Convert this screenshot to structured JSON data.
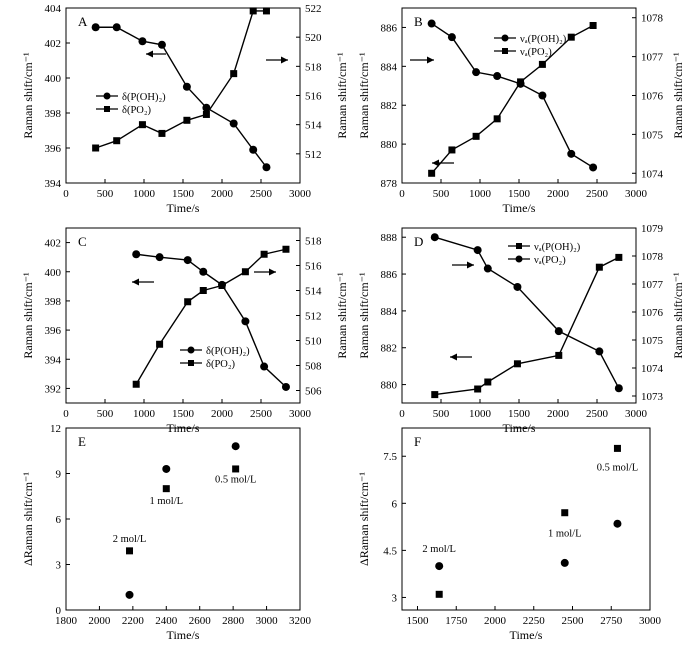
{
  "chart_data": [
    {
      "panel": "A",
      "type": "line",
      "xlabel": "Time/s",
      "ylabel": "Raman shift/cm⁻¹",
      "y2label": "Raman shift/cm⁻¹",
      "xlim": [
        0,
        3000
      ],
      "ylim": [
        394,
        404
      ],
      "y2lim": [
        510,
        522
      ],
      "xticks": [
        0,
        500,
        1000,
        1500,
        2000,
        2500,
        3000
      ],
      "yticks": [
        394,
        396,
        398,
        400,
        402,
        404
      ],
      "y2ticks": [
        512,
        514,
        516,
        518,
        520,
        522
      ],
      "series": [
        {
          "name": "δ(P(OH)₂)",
          "axis": "left",
          "marker": "circle",
          "x": [
            380,
            650,
            980,
            1230,
            1550,
            1800,
            2150,
            2400,
            2570
          ],
          "y": [
            402.9,
            402.9,
            402.1,
            401.9,
            399.5,
            398.3,
            397.4,
            395.9,
            394.9
          ]
        },
        {
          "name": "δ(PO₂)",
          "axis": "right",
          "marker": "square",
          "x": [
            380,
            650,
            980,
            1230,
            1550,
            1800,
            2150,
            2400,
            2570
          ],
          "y": [
            512.4,
            512.9,
            514.0,
            513.4,
            514.3,
            514.7,
            517.5,
            521.8,
            521.8
          ]
        }
      ],
      "legend": "left"
    },
    {
      "panel": "B",
      "type": "line",
      "xlabel": "Time/s",
      "ylabel": "Raman shift/cm⁻¹",
      "y2label": "Raman shift/cm⁻¹",
      "xlim": [
        0,
        3000
      ],
      "ylim": [
        878,
        887
      ],
      "y2lim": [
        1073.75,
        1078.25
      ],
      "xticks": [
        0,
        500,
        1000,
        1500,
        2000,
        2500,
        3000
      ],
      "yticks": [
        878,
        880,
        882,
        884,
        886
      ],
      "y2ticks": [
        1074,
        1075,
        1076,
        1077,
        1078
      ],
      "series": [
        {
          "name": "νₐ(P(OH)₂)",
          "axis": "left",
          "marker": "circle",
          "x": [
            380,
            640,
            950,
            1220,
            1520,
            1800,
            2170,
            2450
          ],
          "y": [
            886.2,
            885.5,
            883.7,
            883.5,
            883.1,
            882.5,
            879.5,
            878.8
          ]
        },
        {
          "name": "νₐ(PO₂)",
          "axis": "right",
          "marker": "square",
          "x": [
            380,
            640,
            950,
            1220,
            1520,
            1800,
            2170,
            2450
          ],
          "y": [
            1074.0,
            1074.6,
            1074.95,
            1075.4,
            1076.35,
            1076.8,
            1077.5,
            1077.8
          ]
        }
      ],
      "legend": "top-right"
    },
    {
      "panel": "C",
      "type": "line",
      "xlabel": "Time/s",
      "ylabel": "Raman shift/cm⁻¹",
      "y2label": "Raman shift/cm⁻¹",
      "xlim": [
        0,
        3000
      ],
      "ylim": [
        391,
        403
      ],
      "y2lim": [
        505,
        519
      ],
      "xticks": [
        0,
        500,
        1000,
        1500,
        2000,
        2500,
        3000
      ],
      "yticks": [
        392,
        394,
        396,
        398,
        400,
        402
      ],
      "y2ticks": [
        506,
        508,
        510,
        512,
        514,
        516,
        518
      ],
      "series": [
        {
          "name": "δ(P(OH)₂)",
          "axis": "left",
          "marker": "circle",
          "x": [
            900,
            1200,
            1560,
            1760,
            2000,
            2300,
            2540,
            2820
          ],
          "y": [
            401.2,
            401.0,
            400.8,
            400.0,
            399.1,
            396.6,
            393.5,
            392.1
          ]
        },
        {
          "name": "δ(PO₂)",
          "axis": "right",
          "marker": "square",
          "x": [
            900,
            1200,
            1560,
            1760,
            2000,
            2300,
            2540,
            2820
          ],
          "y": [
            506.5,
            509.7,
            513.1,
            514.0,
            514.4,
            515.5,
            516.9,
            517.3
          ]
        }
      ],
      "legend": "bottom-right"
    },
    {
      "panel": "D",
      "type": "line",
      "xlabel": "Time/s",
      "ylabel": "Raman shift/cm⁻¹",
      "y2label": "Raman shift/cm⁻¹",
      "xlim": [
        0,
        3000
      ],
      "ylim": [
        879,
        888.5
      ],
      "y2lim": [
        1072.75,
        1079
      ],
      "xticks": [
        0,
        500,
        1000,
        1500,
        2000,
        2500,
        3000
      ],
      "yticks": [
        880,
        882,
        884,
        886,
        888
      ],
      "y2ticks": [
        1073,
        1074,
        1075,
        1076,
        1077,
        1078,
        1079
      ],
      "series": [
        {
          "name": "νₐ(P(OH)₂)",
          "axis": "right",
          "marker": "square",
          "x": [
            420,
            970,
            1100,
            1480,
            2010,
            2530,
            2780
          ],
          "y": [
            1073.05,
            1073.25,
            1073.5,
            1074.15,
            1074.45,
            1077.6,
            1077.95
          ]
        },
        {
          "name": "νₐ(PO₂)",
          "axis": "left",
          "marker": "circle",
          "x": [
            420,
            970,
            1100,
            1480,
            2010,
            2530,
            2780
          ],
          "y": [
            888.0,
            887.3,
            886.3,
            885.3,
            882.9,
            881.8,
            879.8
          ]
        }
      ],
      "legend": "top-right"
    },
    {
      "panel": "E",
      "type": "scatter",
      "xlabel": "Time/s",
      "ylabel": "ΔRaman shift/cm⁻¹",
      "xlim": [
        1800,
        3200
      ],
      "ylim": [
        0,
        12
      ],
      "xticks": [
        1800,
        2000,
        2200,
        2400,
        2600,
        2800,
        3000,
        3200
      ],
      "yticks": [
        0,
        3,
        6,
        9,
        12
      ],
      "series": [
        {
          "name": "",
          "marker": "square",
          "x": [
            2180,
            2400,
            2815
          ],
          "y": [
            3.9,
            8.0,
            9.3
          ]
        },
        {
          "name": "",
          "marker": "circle",
          "x": [
            2180,
            2400,
            2815
          ],
          "y": [
            1.0,
            9.3,
            10.8
          ]
        }
      ],
      "annotations": [
        {
          "text": "2 mol/L",
          "x": 2180,
          "y": 4.5
        },
        {
          "text": "1 mol/L",
          "x": 2400,
          "y": 7.0
        },
        {
          "text": "0.5 mol/L",
          "x": 2815,
          "y": 8.4
        }
      ]
    },
    {
      "panel": "F",
      "type": "scatter",
      "xlabel": "Time/s",
      "ylabel": "ΔRaman shift/cm⁻¹",
      "xlim": [
        1400,
        3000
      ],
      "ylim": [
        2.6,
        8.4
      ],
      "xticks": [
        1500,
        1750,
        2000,
        2250,
        2500,
        2750,
        3000
      ],
      "yticks": [
        3.0,
        4.5,
        6.0,
        7.5
      ],
      "series": [
        {
          "name": "",
          "marker": "square",
          "x": [
            1640,
            2450,
            2790
          ],
          "y": [
            3.1,
            5.7,
            7.75
          ]
        },
        {
          "name": "",
          "marker": "circle",
          "x": [
            1640,
            2450,
            2790
          ],
          "y": [
            4.0,
            4.1,
            5.35
          ]
        }
      ],
      "annotations": [
        {
          "text": "2 mol/L",
          "x": 1640,
          "y": 4.45
        },
        {
          "text": "1 mol/L",
          "x": 2450,
          "y": 4.95
        },
        {
          "text": "0.5 mol/L",
          "x": 2790,
          "y": 7.05
        }
      ]
    }
  ]
}
